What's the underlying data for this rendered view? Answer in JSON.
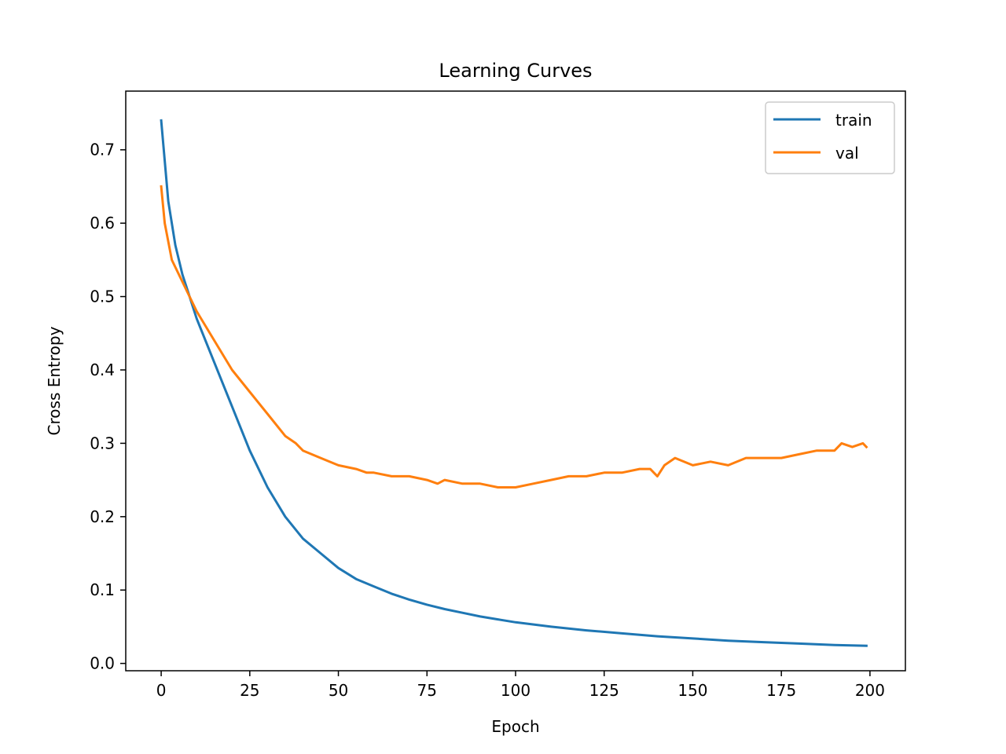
{
  "chart_data": {
    "type": "line",
    "title": "Learning Curves",
    "xlabel": "Epoch",
    "ylabel": "Cross Entropy",
    "xlim": [
      -10,
      210
    ],
    "ylim": [
      -0.01,
      0.78
    ],
    "xticks": [
      0,
      25,
      50,
      75,
      100,
      125,
      150,
      175,
      200
    ],
    "yticks": [
      0.0,
      0.1,
      0.2,
      0.3,
      0.4,
      0.5,
      0.6,
      0.7
    ],
    "grid": false,
    "legend": "top-right",
    "series": [
      {
        "name": "train",
        "color": "#1f77b4",
        "x": [
          0,
          2,
          4,
          6,
          8,
          10,
          15,
          20,
          25,
          30,
          35,
          40,
          45,
          50,
          55,
          60,
          65,
          70,
          75,
          80,
          85,
          90,
          95,
          100,
          110,
          120,
          130,
          140,
          150,
          160,
          170,
          180,
          190,
          199
        ],
        "y": [
          0.74,
          0.63,
          0.57,
          0.53,
          0.5,
          0.47,
          0.41,
          0.35,
          0.29,
          0.24,
          0.2,
          0.17,
          0.15,
          0.13,
          0.115,
          0.105,
          0.095,
          0.087,
          0.08,
          0.074,
          0.069,
          0.064,
          0.06,
          0.056,
          0.05,
          0.045,
          0.041,
          0.037,
          0.034,
          0.031,
          0.029,
          0.027,
          0.025,
          0.024
        ]
      },
      {
        "name": "val",
        "color": "#ff7f0e",
        "x": [
          0,
          1,
          3,
          5,
          8,
          10,
          15,
          20,
          25,
          30,
          35,
          38,
          40,
          45,
          50,
          55,
          58,
          60,
          65,
          70,
          75,
          78,
          80,
          85,
          90,
          95,
          98,
          100,
          105,
          110,
          115,
          120,
          125,
          130,
          135,
          138,
          140,
          142,
          145,
          150,
          155,
          160,
          165,
          170,
          175,
          180,
          185,
          190,
          192,
          195,
          198,
          199
        ],
        "y": [
          0.65,
          0.6,
          0.55,
          0.53,
          0.5,
          0.48,
          0.44,
          0.4,
          0.37,
          0.34,
          0.31,
          0.3,
          0.29,
          0.28,
          0.27,
          0.265,
          0.26,
          0.26,
          0.255,
          0.255,
          0.25,
          0.245,
          0.25,
          0.245,
          0.245,
          0.24,
          0.24,
          0.24,
          0.245,
          0.25,
          0.255,
          0.255,
          0.26,
          0.26,
          0.265,
          0.265,
          0.255,
          0.27,
          0.28,
          0.27,
          0.275,
          0.27,
          0.28,
          0.28,
          0.28,
          0.285,
          0.29,
          0.29,
          0.3,
          0.295,
          0.3,
          0.295
        ]
      }
    ]
  }
}
